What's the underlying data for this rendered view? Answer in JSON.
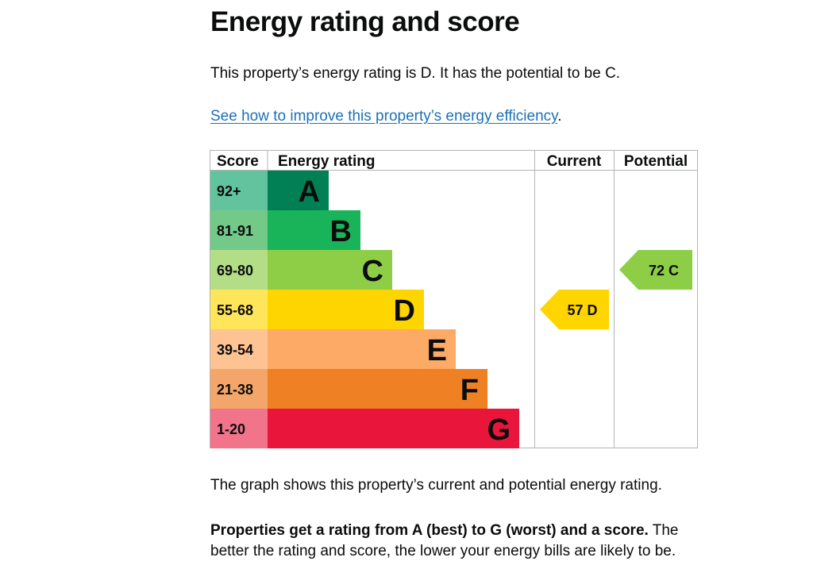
{
  "page": {
    "title": "Energy rating and score",
    "intro": "This property’s energy rating is D. It has the potential to be C.",
    "link_text": "See how to improve this property’s energy efficiency",
    "link_suffix": ".",
    "graph_caption": "The graph shows this property’s current and potential energy rating.",
    "rating_info_bold": "Properties get a rating from A (best) to G (worst) and a score.",
    "rating_info_rest": " The better the rating and score, the lower your energy bills are likely to be."
  },
  "chart_data": {
    "type": "bar",
    "columns": [
      "Score",
      "Energy rating",
      "Current",
      "Potential"
    ],
    "bands": [
      {
        "letter": "A",
        "score": "92+",
        "color": "#008054",
        "score_color": "#62c39f"
      },
      {
        "letter": "B",
        "score": "81-91",
        "color": "#19b459",
        "score_color": "#72c988"
      },
      {
        "letter": "C",
        "score": "69-80",
        "color": "#8dce46",
        "score_color": "#b3de86"
      },
      {
        "letter": "D",
        "score": "55-68",
        "color": "#ffd500",
        "score_color": "#ffe55a"
      },
      {
        "letter": "E",
        "score": "39-54",
        "color": "#fcaa65",
        "score_color": "#fdc393"
      },
      {
        "letter": "F",
        "score": "21-38",
        "color": "#ef8023",
        "score_color": "#f4a66a"
      },
      {
        "letter": "G",
        "score": "1-20",
        "color": "#e9153b",
        "score_color": "#f2748a"
      }
    ],
    "current": {
      "score": 57,
      "rating": "D",
      "label": "57 D"
    },
    "potential": {
      "score": 72,
      "rating": "C",
      "label": "72 C"
    }
  }
}
